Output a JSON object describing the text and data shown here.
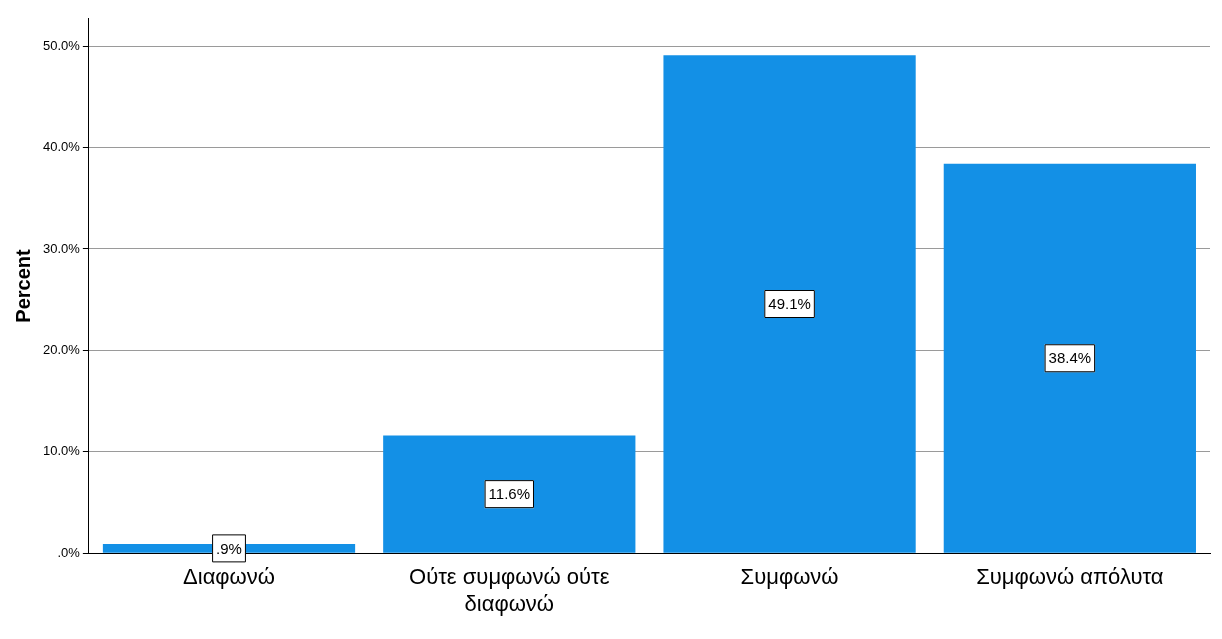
{
  "chart_data": {
    "type": "bar",
    "ylabel": "Percent",
    "categories": [
      "Διαφωνώ",
      "Ούτε συμφωνώ ούτε διαφωνώ",
      "Συμφωνώ",
      "Συμφωνώ απόλυτα"
    ],
    "values": [
      0.9,
      11.6,
      49.1,
      38.4
    ],
    "color": "#1390e6",
    "value_labels": [
      ".9%",
      "11.6%",
      "49.1%",
      "38.4%"
    ],
    "ylim": [
      0,
      52.7
    ],
    "yticks": [
      {
        "value": 0,
        "label": ".0%"
      },
      {
        "value": 10,
        "label": "10.0%"
      },
      {
        "value": 20,
        "label": "20.0%"
      },
      {
        "value": 30,
        "label": "30.0%"
      },
      {
        "value": 40,
        "label": "40.0%"
      },
      {
        "value": 50,
        "label": "50.0%"
      }
    ],
    "grid": "y",
    "legend": false
  }
}
